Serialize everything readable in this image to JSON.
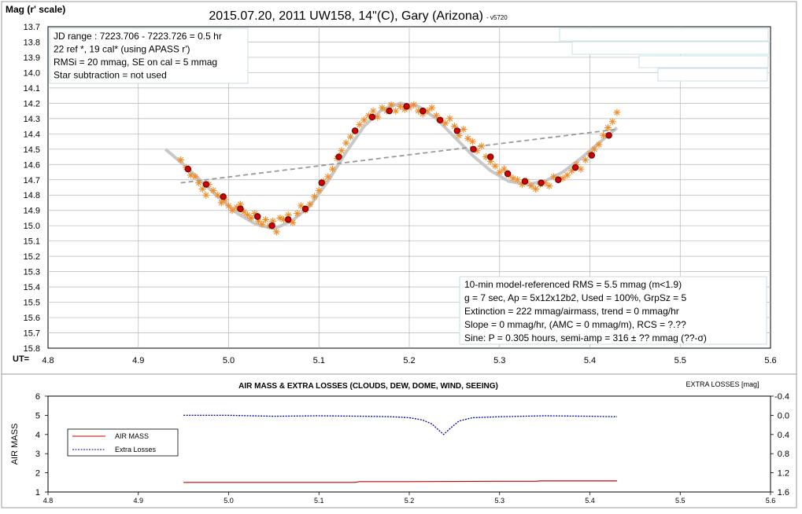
{
  "chart_data": [
    {
      "type": "scatter",
      "title": "2015.07.20, 2011 UW158, 14\"(C), Gary (Arizona)",
      "version_tag": "- v5720",
      "ylabel": "Mag (r' scale)",
      "xlabel": "UT=",
      "xlim": [
        4.8,
        5.6
      ],
      "ylim": [
        15.8,
        13.7
      ],
      "y_inverted": true,
      "grid": true,
      "x_ticks": [
        "4.8",
        "4.9",
        "5.0",
        "5.1",
        "5.2",
        "5.3",
        "5.4",
        "5.5",
        "5.6"
      ],
      "y_ticks": [
        "13.7",
        "13.8",
        "13.9",
        "14.0",
        "14.1",
        "14.2",
        "14.3",
        "14.4",
        "14.5",
        "14.6",
        "14.7",
        "14.8",
        "14.9",
        "15.0",
        "15.1",
        "15.2",
        "15.3",
        "15.4",
        "15.5",
        "15.6",
        "15.7",
        "15.8"
      ],
      "info_box_left": [
        "JD range : 7223.706 - 7223.726 = 0.5 hr",
        " 22 ref *, 19 cal* (using APASS r')",
        "RMSi = 20 mmag, SE on cal = 5 mmag",
        "Star subtraction = not used"
      ],
      "info_box_right": [
        "10-min model-referenced RMS = 5.5 mmag (m<1.9)",
        "g = 7 sec, Ap = 5x12x12b2, Used = 100%,  GrpSz = 5",
        "Extinction = 222 mmag/airmass, trend = 0 mmag/hr",
        " Slope = 0 mmag/hr, (AMC = 0 mmag/m), RCS = ?.??",
        " Sine: P = 0.305 hours, semi-amp = 316 ± ?? mmag (??-σ)"
      ],
      "colors": {
        "individual": "#f08c28",
        "averaged": "#cc0000",
        "model": "#c8c8c8",
        "trend": "#999999"
      },
      "series": [
        {
          "kind": "individual-asterisks",
          "x": [
            4.947,
            4.953,
            4.958,
            4.963,
            4.967,
            4.971,
            4.975,
            4.978,
            4.983,
            4.988,
            4.992,
            4.996,
            5.0,
            5.004,
            5.009,
            5.013,
            5.017,
            5.021,
            5.025,
            5.029,
            5.033,
            5.037,
            5.041,
            5.045,
            5.049,
            5.053,
            5.057,
            5.061,
            5.066,
            5.071,
            5.076,
            5.08,
            5.085,
            5.09,
            5.095,
            5.1,
            5.105,
            5.11,
            5.115,
            5.12,
            5.125,
            5.13,
            5.135,
            5.14,
            5.145,
            5.15,
            5.155,
            5.16,
            5.165,
            5.17,
            5.175,
            5.18,
            5.185,
            5.19,
            5.195,
            5.2,
            5.205,
            5.21,
            5.215,
            5.22,
            5.225,
            5.23,
            5.235,
            5.24,
            5.245,
            5.25,
            5.255,
            5.26,
            5.265,
            5.27,
            5.275,
            5.28,
            5.285,
            5.29,
            5.295,
            5.3,
            5.305,
            5.31,
            5.315,
            5.32,
            5.325,
            5.33,
            5.335,
            5.34,
            5.345,
            5.35,
            5.355,
            5.36,
            5.365,
            5.37,
            5.375,
            5.38,
            5.385,
            5.39,
            5.395,
            5.4,
            5.405,
            5.41,
            5.415,
            5.42,
            5.425,
            5.43
          ],
          "y": [
            14.57,
            14.62,
            14.67,
            14.68,
            14.72,
            14.76,
            14.8,
            14.73,
            14.77,
            14.8,
            14.85,
            14.83,
            14.87,
            14.9,
            14.88,
            14.86,
            14.91,
            14.93,
            14.95,
            14.92,
            14.97,
            14.99,
            14.96,
            15.0,
            14.97,
            15.04,
            14.95,
            14.96,
            14.93,
            14.98,
            14.92,
            14.87,
            14.9,
            14.86,
            14.81,
            14.77,
            14.71,
            14.68,
            14.63,
            14.56,
            14.51,
            14.46,
            14.42,
            14.38,
            14.34,
            14.31,
            14.28,
            14.25,
            14.29,
            14.23,
            14.25,
            14.21,
            14.25,
            14.22,
            14.24,
            14.23,
            14.21,
            14.25,
            14.27,
            14.25,
            14.23,
            14.28,
            14.31,
            14.33,
            14.3,
            14.35,
            14.41,
            14.37,
            14.43,
            14.45,
            14.51,
            14.48,
            14.55,
            14.58,
            14.61,
            14.65,
            14.63,
            14.67,
            14.69,
            14.7,
            14.73,
            14.71,
            14.74,
            14.76,
            14.73,
            14.72,
            14.74,
            14.68,
            14.7,
            14.69,
            14.67,
            14.64,
            14.6,
            14.63,
            14.57,
            14.53,
            14.5,
            14.47,
            14.41,
            14.36,
            14.32,
            14.26
          ]
        },
        {
          "kind": "averaged-circles",
          "x": [
            4.955,
            4.975,
            4.994,
            5.013,
            5.032,
            5.048,
            5.066,
            5.085,
            5.103,
            5.122,
            5.14,
            5.159,
            5.178,
            5.197,
            5.215,
            5.234,
            5.253,
            5.271,
            5.29,
            5.309,
            5.328,
            5.346,
            5.365,
            5.384,
            5.402,
            5.421
          ],
          "y": [
            14.63,
            14.73,
            14.81,
            14.89,
            14.94,
            15.0,
            14.96,
            14.89,
            14.72,
            14.55,
            14.38,
            14.29,
            14.25,
            14.22,
            14.25,
            14.31,
            14.38,
            14.5,
            14.55,
            14.66,
            14.71,
            14.72,
            14.7,
            14.62,
            14.54,
            14.41
          ]
        },
        {
          "kind": "model-sine",
          "x": [
            4.93,
            4.95,
            4.97,
            4.99,
            5.01,
            5.03,
            5.05,
            5.07,
            5.09,
            5.11,
            5.13,
            5.15,
            5.17,
            5.19,
            5.21,
            5.23,
            5.25,
            5.27,
            5.29,
            5.31,
            5.33,
            5.35,
            5.37,
            5.39,
            5.41,
            5.43
          ],
          "y": [
            14.5,
            14.6,
            14.71,
            14.82,
            14.92,
            14.99,
            15.02,
            14.97,
            14.87,
            14.71,
            14.52,
            14.35,
            14.24,
            14.2,
            14.22,
            14.3,
            14.42,
            14.54,
            14.64,
            14.71,
            14.73,
            14.71,
            14.65,
            14.56,
            14.46,
            14.36
          ]
        },
        {
          "kind": "trend-line",
          "x": [
            4.947,
            5.43
          ],
          "y": [
            14.72,
            14.37
          ]
        }
      ]
    },
    {
      "type": "line",
      "title": "AIR MASS & EXTRA LOSSES (CLOUDS, DEW, DOME, WIND, SEEING)",
      "ylabel": "AIR MASS",
      "y2label": "EXTRA LOSSES [mag]",
      "xlim": [
        4.8,
        5.6
      ],
      "ylim": [
        1,
        6
      ],
      "y2lim": [
        -0.4,
        1.6
      ],
      "x_ticks": [
        "4.8",
        "4.9",
        "5.0",
        "5.1",
        "5.2",
        "5.3",
        "5.4",
        "5.5",
        "5.6"
      ],
      "y_ticks": [
        "1",
        "2",
        "3",
        "4",
        "5",
        "6"
      ],
      "y2_ticks": [
        "-0.4",
        "0.0",
        "0.4",
        "0.8",
        "1.2",
        "1.6"
      ],
      "legend": [
        "AIR MASS",
        "Extra Losses"
      ],
      "legend_position": "left",
      "colors": {
        "airmass": "#cc0000",
        "losses": "#0000aa"
      },
      "series": [
        {
          "name": "AIR MASS",
          "x": [
            4.95,
            5.0,
            5.05,
            5.1,
            5.14,
            5.145,
            5.2,
            5.25,
            5.3,
            5.34,
            5.345,
            5.43
          ],
          "y": [
            1.5,
            1.5,
            1.5,
            1.5,
            1.5,
            1.54,
            1.54,
            1.55,
            1.56,
            1.56,
            1.58,
            1.58
          ]
        },
        {
          "name": "Extra Losses",
          "x": [
            4.95,
            5.0,
            5.05,
            5.1,
            5.15,
            5.18,
            5.2,
            5.215,
            5.225,
            5.232,
            5.238,
            5.245,
            5.255,
            5.27,
            5.3,
            5.35,
            5.4,
            5.43
          ],
          "y": [
            0.0,
            0.0,
            0.02,
            0.01,
            0.02,
            0.03,
            0.05,
            0.1,
            0.18,
            0.3,
            0.4,
            0.28,
            0.12,
            0.05,
            0.03,
            0.01,
            0.02,
            0.03
          ]
        }
      ]
    }
  ]
}
